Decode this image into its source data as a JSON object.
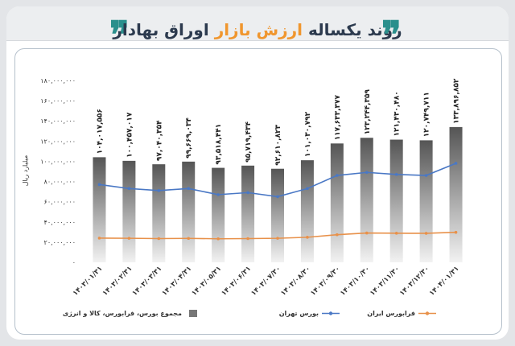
{
  "header": {
    "title_part1": "روند یکساله",
    "title_part2": "ارزش بازار",
    "title_part3": "اوراق بهادار",
    "quote_left": "❝",
    "quote_right": "❞"
  },
  "colors": {
    "accent_teal": "#2a8f8c",
    "accent_orange": "#f0962e",
    "line_tehran": "#4a78c5",
    "line_ifb": "#e8914a",
    "bar_top": "#555555",
    "bar_bottom": "#f2f2f2"
  },
  "chart_data": {
    "type": "bar",
    "ylabel": "میلیارد ریال",
    "ylim": [
      0,
      180000000
    ],
    "yticks": [
      0,
      20000000,
      40000000,
      60000000,
      80000000,
      100000000,
      120000000,
      140000000,
      160000000,
      180000000
    ],
    "ytick_labels": [
      "۰",
      "۲۰,۰۰۰,۰۰۰",
      "۴۰,۰۰۰,۰۰۰",
      "۶۰,۰۰۰,۰۰۰",
      "۸۰,۰۰۰,۰۰۰",
      "۱۰۰,۰۰۰,۰۰۰",
      "۱۲۰,۰۰۰,۰۰۰",
      "۱۴۰,۰۰۰,۰۰۰",
      "۱۶۰,۰۰۰,۰۰۰",
      "۱۸۰,۰۰۰,۰۰۰"
    ],
    "categories": [
      "۱۴۰۳/۰۱/۳۱",
      "۱۴۰۳/۰۲/۳۱",
      "۱۴۰۳/۰۳/۳۱",
      "۱۴۰۳/۰۴/۳۱",
      "۱۴۰۳/۰۵/۳۱",
      "۱۴۰۳/۰۶/۳۱",
      "۱۴۰۳/۰۷/۳۰",
      "۱۴۰۳/۰۸/۳۰",
      "۱۴۰۳/۰۹/۳۰",
      "۱۴۰۳/۱۰/۳۰",
      "۱۴۰۳/۱۱/۳۰",
      "۱۴۰۳/۱۲/۳۰",
      "۱۴۰۴/۰۱/۳۱"
    ],
    "series": [
      {
        "name": "مجموع بورس، فرابورس، کالا و انرژی",
        "kind": "bar",
        "values": [
          104017556,
          100457017,
          97040354,
          99669034,
          93518441,
          95719434,
          92610823,
          101030792,
          117633377,
          123244359,
          121430480,
          120749711,
          133896852
        ],
        "labels": [
          "۱۰۴,۰۱۷,۵۵۶",
          "۱۰۰,۴۵۷,۰۱۷",
          "۹۷,۰۴۰,۳۵۴",
          "۹۹,۶۶۹,۰۳۴",
          "۹۳,۵۱۸,۴۴۱",
          "۹۵,۷۱۹,۴۳۴",
          "۹۲,۶۱۰,۸۲۳",
          "۱۰۱,۰۳۰,۷۹۲",
          "۱۱۷,۶۳۳,۳۷۷",
          "۱۲۳,۲۴۴,۳۵۹",
          "۱۲۱,۴۳۰,۴۸۰",
          "۱۲۰,۷۴۹,۷۱۱",
          "۱۳۳,۸۹۶,۸۵۲"
        ]
      },
      {
        "name": "بورس تهران",
        "kind": "line",
        "values": [
          77000000,
          73000000,
          71000000,
          73000000,
          67000000,
          69000000,
          65000000,
          73000000,
          86000000,
          89000000,
          87000000,
          86000000,
          98000000
        ]
      },
      {
        "name": "فرابورس ایران",
        "kind": "line",
        "values": [
          24000000,
          23800000,
          23500000,
          23700000,
          23300000,
          23500000,
          23800000,
          24800000,
          27300000,
          29000000,
          28800000,
          28700000,
          29700000
        ]
      }
    ],
    "legend_position": "bottom",
    "grid": false
  }
}
